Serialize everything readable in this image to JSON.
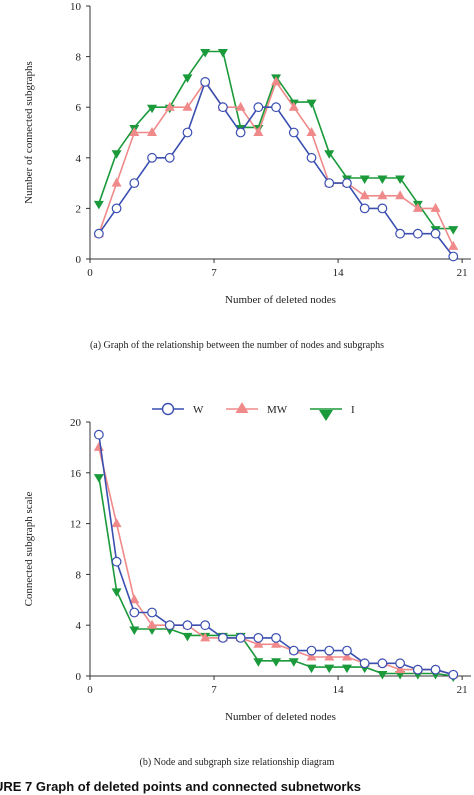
{
  "colors": {
    "W": "#3a4fb0",
    "MW": "#f08a8a",
    "I": "#1a9a3a",
    "axis": "#333333"
  },
  "legend": {
    "entries": [
      "W",
      "MW",
      "I"
    ]
  },
  "figure_caption": "URE 7 Graph of deleted points and connected subnetworks",
  "chart_data": [
    {
      "type": "line",
      "caption": "(a) Graph of the relationship between the number of nodes and subgraphs",
      "xlabel": "Number of deleted nodes",
      "ylabel": "Number of connected subgraphs",
      "xlim": [
        0,
        21.5
      ],
      "ylim": [
        0,
        10
      ],
      "xticks": [
        0,
        7,
        14,
        21
      ],
      "yticks": [
        0,
        2,
        4,
        6,
        8,
        10
      ],
      "series": [
        {
          "name": "W",
          "x": [
            0.5,
            1.5,
            2.5,
            3.5,
            4.5,
            5.5,
            6.5,
            7.5,
            8.5,
            9.5,
            10.5,
            11.5,
            12.5,
            13.5,
            14.5,
            15.5,
            16.5,
            17.5,
            18.5,
            19.5,
            20.5
          ],
          "y": [
            1,
            2,
            3,
            4,
            4,
            5,
            7,
            6,
            5,
            6,
            6,
            5,
            4,
            3,
            3,
            2,
            2,
            1,
            1,
            1,
            0.1
          ]
        },
        {
          "name": "MW",
          "x": [
            0.5,
            1.5,
            2.5,
            3.5,
            4.5,
            5.5,
            6.5,
            7.5,
            8.5,
            9.5,
            10.5,
            11.5,
            12.5,
            13.5,
            14.5,
            15.5,
            16.5,
            17.5,
            18.5,
            19.5,
            20.5
          ],
          "y": [
            1,
            3,
            5,
            5,
            6,
            6,
            7,
            6,
            6,
            5,
            7,
            6,
            5,
            3,
            3,
            2.5,
            2.5,
            2.5,
            2,
            2,
            0.5
          ]
        },
        {
          "name": "I",
          "x": [
            0.5,
            1.5,
            2.5,
            3.5,
            4.5,
            5.5,
            6.5,
            7.5,
            8.5,
            9.5,
            10.5,
            11.5,
            12.5,
            13.5,
            14.5,
            15.5,
            16.5,
            17.5,
            18.5,
            19.5,
            20.5
          ],
          "y": [
            2.2,
            4.2,
            5.2,
            6,
            6,
            7.2,
            8.2,
            8.2,
            5.2,
            5.2,
            7.2,
            6.2,
            6.2,
            4.2,
            3.2,
            3.2,
            3.2,
            3.2,
            2.2,
            1.2,
            1.2
          ]
        }
      ]
    },
    {
      "type": "line",
      "caption": "(b) Node and subgraph size relationship diagram",
      "xlabel": "Number of deleted nodes",
      "ylabel": "Connected subgraph scale",
      "xlim": [
        0,
        21.5
      ],
      "ylim": [
        0,
        20
      ],
      "xticks": [
        0,
        7,
        14,
        21
      ],
      "yticks": [
        0,
        4,
        8,
        12,
        16,
        20
      ],
      "series": [
        {
          "name": "W",
          "x": [
            0.5,
            1.5,
            2.5,
            3.5,
            4.5,
            5.5,
            6.5,
            7.5,
            8.5,
            9.5,
            10.5,
            11.5,
            12.5,
            13.5,
            14.5,
            15.5,
            16.5,
            17.5,
            18.5,
            19.5,
            20.5
          ],
          "y": [
            19,
            9,
            5,
            5,
            4,
            4,
            4,
            3,
            3,
            3,
            3,
            2,
            2,
            2,
            2,
            1,
            1,
            1,
            0.5,
            0.5,
            0.1
          ]
        },
        {
          "name": "MW",
          "x": [
            0.5,
            1.5,
            2.5,
            3.5,
            4.5,
            5.5,
            6.5,
            7.5,
            8.5,
            9.5,
            10.5,
            11.5,
            12.5,
            13.5,
            14.5,
            15.5,
            16.5,
            17.5,
            18.5,
            19.5,
            20.5
          ],
          "y": [
            18,
            12,
            6,
            4,
            4,
            4,
            3,
            3,
            3,
            2.5,
            2.5,
            2,
            1.5,
            1.5,
            1.5,
            1,
            1,
            0.5,
            0.5,
            0.5,
            0.1
          ]
        },
        {
          "name": "I",
          "x": [
            0.5,
            1.5,
            2.5,
            3.5,
            4.5,
            5.5,
            6.5,
            7.5,
            8.5,
            9.5,
            10.5,
            11.5,
            12.5,
            13.5,
            14.5,
            15.5,
            16.5,
            17.5,
            18.5,
            19.5,
            20.5
          ],
          "y": [
            15.7,
            6.7,
            3.7,
            3.7,
            3.7,
            3.2,
            3.2,
            3.2,
            3.2,
            1.2,
            1.2,
            1.2,
            0.7,
            0.7,
            0.7,
            0.7,
            0.2,
            0.2,
            0.2,
            0.2,
            0
          ]
        }
      ]
    }
  ]
}
